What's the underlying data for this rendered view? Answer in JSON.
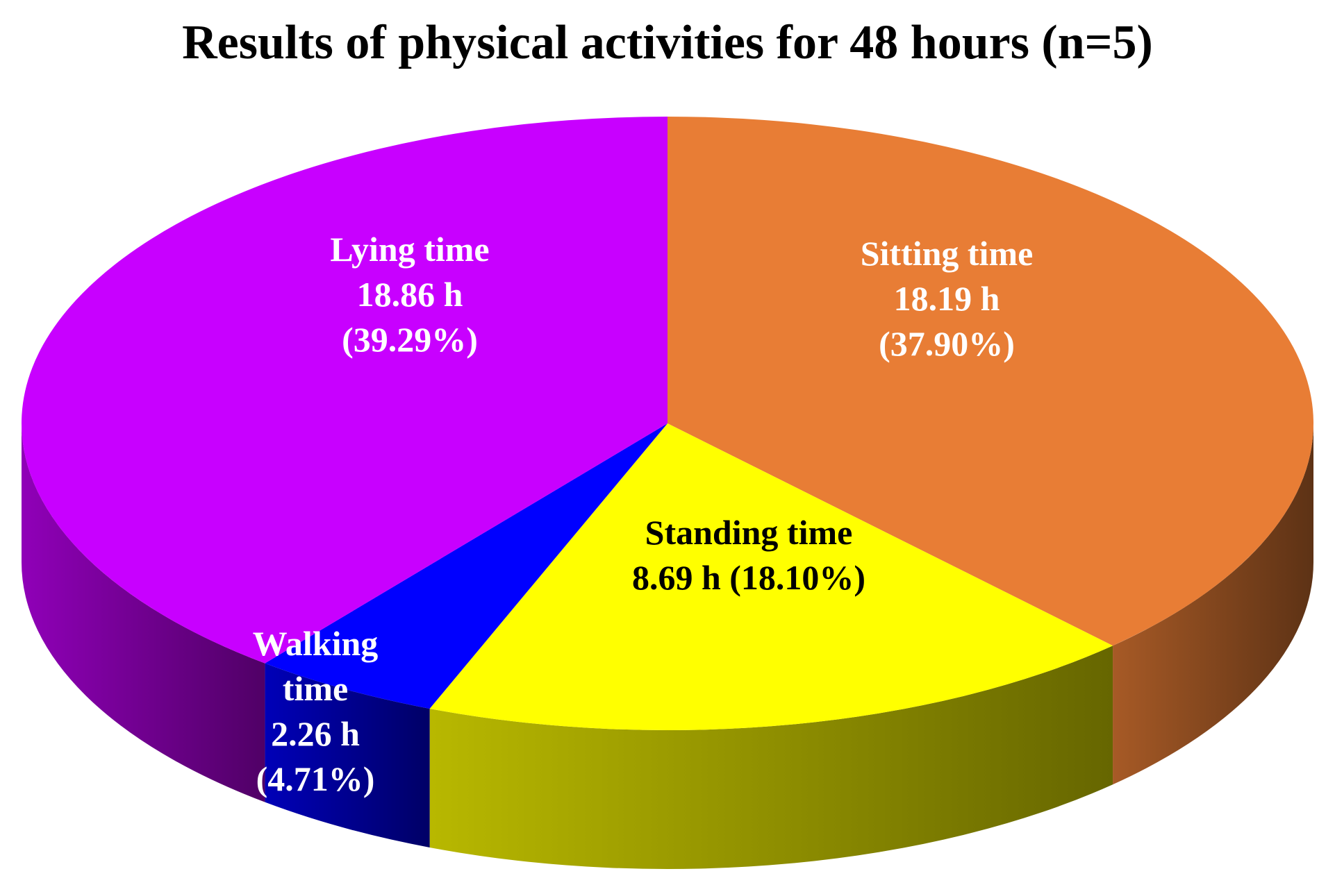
{
  "chart_data": {
    "type": "pie3d",
    "title": "Results of physical activities for 48 hours (n=5)",
    "categories": [
      "Sitting time",
      "Standing time",
      "Walking time",
      "Lying time"
    ],
    "values": [
      18.19,
      8.69,
      2.26,
      18.86
    ],
    "value_labels": [
      "18.19 h",
      "8.69 h",
      "2.26 h",
      "18.86 h"
    ],
    "percent_labels": [
      "(37.90%)",
      "(18.10%)",
      "(4.71%)",
      "(39.29%)"
    ],
    "colors": [
      "#E87D35",
      "#FFFF00",
      "#0000FF",
      "#C800FF"
    ]
  }
}
